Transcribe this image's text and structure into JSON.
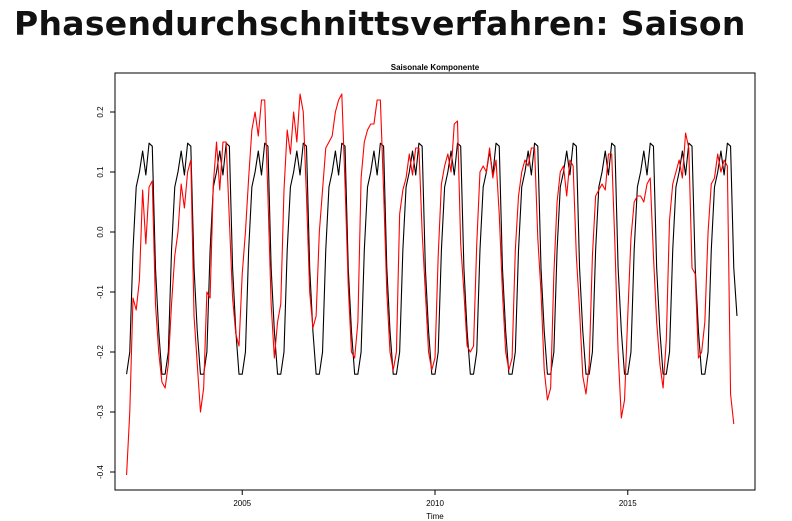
{
  "slide": {
    "title": "Phasendurchschnittsverfahren: Saison"
  },
  "chart_data": {
    "type": "line",
    "title": "Saisonale Komponente",
    "xlabel": "Time",
    "ylabel": "",
    "xlim": [
      2001.7,
      2018.3
    ],
    "ylim": [
      -0.43,
      0.265
    ],
    "xticks": [
      2005,
      2010,
      2015
    ],
    "yticks": [
      -0.4,
      -0.3,
      -0.2,
      -0.1,
      0.0,
      0.1,
      0.2
    ],
    "ytick_labels": [
      "-0.4",
      "-0.3",
      "-0.2",
      "-0.1",
      "0.0",
      "0.1",
      "0.2"
    ],
    "grid": false,
    "legend": "none",
    "x_start": 2002.0,
    "x_step": 0.08333,
    "series": [
      {
        "color": "#000000",
        "values": [
          -0.237,
          -0.2,
          -0.03,
          0.075,
          0.1,
          0.135,
          0.095,
          0.148,
          0.143,
          -0.06,
          -0.165,
          -0.237,
          -0.237,
          -0.2,
          -0.03,
          0.075,
          0.1,
          0.135,
          0.095,
          0.148,
          0.143,
          -0.06,
          -0.165,
          -0.237,
          -0.237,
          -0.2,
          -0.03,
          0.075,
          0.1,
          0.135,
          0.095,
          0.148,
          0.143,
          -0.06,
          -0.165,
          -0.237,
          -0.237,
          -0.2,
          -0.03,
          0.075,
          0.1,
          0.135,
          0.095,
          0.148,
          0.143,
          -0.06,
          -0.165,
          -0.237,
          -0.237,
          -0.2,
          -0.03,
          0.075,
          0.1,
          0.135,
          0.095,
          0.148,
          0.143,
          -0.06,
          -0.165,
          -0.237,
          -0.237,
          -0.2,
          -0.03,
          0.075,
          0.1,
          0.135,
          0.095,
          0.148,
          0.143,
          -0.06,
          -0.165,
          -0.237,
          -0.237,
          -0.2,
          -0.03,
          0.075,
          0.1,
          0.135,
          0.095,
          0.148,
          0.143,
          -0.06,
          -0.165,
          -0.237,
          -0.237,
          -0.2,
          -0.03,
          0.075,
          0.1,
          0.135,
          0.095,
          0.148,
          0.143,
          -0.06,
          -0.165,
          -0.237,
          -0.237,
          -0.2,
          -0.03,
          0.075,
          0.1,
          0.135,
          0.095,
          0.148,
          0.143,
          -0.06,
          -0.165,
          -0.237,
          -0.237,
          -0.2,
          -0.03,
          0.075,
          0.1,
          0.135,
          0.095,
          0.148,
          0.143,
          -0.06,
          -0.165,
          -0.237,
          -0.237,
          -0.2,
          -0.03,
          0.075,
          0.1,
          0.135,
          0.095,
          0.148,
          0.143,
          -0.06,
          -0.165,
          -0.237,
          -0.237,
          -0.2,
          -0.03,
          0.075,
          0.1,
          0.135,
          0.095,
          0.148,
          0.143,
          -0.06,
          -0.165,
          -0.237,
          -0.237,
          -0.2,
          -0.03,
          0.075,
          0.1,
          0.135,
          0.095,
          0.148,
          0.143,
          -0.06,
          -0.165,
          -0.237,
          -0.237,
          -0.2,
          -0.03,
          0.075,
          0.1,
          0.135,
          0.095,
          0.148,
          0.143,
          -0.06,
          -0.165,
          -0.237,
          -0.237,
          -0.2,
          -0.03,
          0.075,
          0.1,
          0.135,
          0.095,
          0.148,
          0.143,
          -0.06,
          -0.165,
          -0.237,
          -0.237,
          -0.2,
          -0.03,
          0.075,
          0.1,
          0.135,
          0.095,
          0.148,
          0.143,
          -0.06,
          -0.14
        ]
      },
      {
        "color": "#ff0000",
        "values": [
          -0.405,
          -0.3,
          -0.11,
          -0.13,
          -0.08,
          0.07,
          -0.02,
          0.075,
          0.085,
          -0.12,
          -0.2,
          -0.25,
          -0.26,
          -0.22,
          -0.12,
          -0.04,
          0.0,
          0.08,
          0.04,
          0.1,
          0.12,
          -0.14,
          -0.22,
          -0.3,
          -0.26,
          -0.1,
          -0.11,
          0.08,
          0.15,
          0.07,
          0.15,
          0.15,
          0.02,
          -0.11,
          -0.17,
          -0.19,
          -0.07,
          0.0,
          0.09,
          0.17,
          0.2,
          0.16,
          0.22,
          0.22,
          0.06,
          -0.12,
          -0.21,
          -0.15,
          -0.12,
          0.07,
          0.17,
          0.13,
          0.2,
          0.15,
          0.23,
          0.2,
          0.06,
          -0.1,
          -0.16,
          -0.14,
          0.0,
          0.07,
          0.14,
          0.15,
          0.16,
          0.2,
          0.22,
          0.23,
          0.08,
          -0.09,
          -0.2,
          -0.21,
          -0.15,
          0.09,
          0.15,
          0.17,
          0.18,
          0.18,
          0.22,
          0.22,
          0.07,
          -0.1,
          -0.2,
          -0.23,
          -0.2,
          0.03,
          0.07,
          0.09,
          0.13,
          0.095,
          0.14,
          0.14,
          0.0,
          -0.1,
          -0.2,
          -0.23,
          -0.21,
          -0.04,
          0.08,
          0.11,
          0.13,
          0.1,
          0.18,
          0.185,
          -0.02,
          -0.1,
          -0.19,
          -0.2,
          -0.19,
          -0.02,
          0.1,
          0.11,
          0.1,
          0.14,
          0.09,
          0.12,
          0.03,
          -0.1,
          -0.2,
          -0.23,
          -0.21,
          -0.03,
          0.06,
          0.1,
          0.12,
          0.11,
          0.14,
          0.14,
          -0.01,
          -0.1,
          -0.23,
          -0.28,
          -0.26,
          -0.07,
          0.05,
          0.1,
          0.11,
          0.06,
          0.12,
          0.11,
          -0.04,
          -0.13,
          -0.24,
          -0.27,
          -0.22,
          -0.04,
          0.06,
          0.07,
          0.08,
          0.07,
          0.13,
          0.13,
          -0.02,
          -0.2,
          -0.31,
          -0.28,
          -0.14,
          -0.01,
          0.05,
          0.06,
          0.06,
          0.05,
          0.08,
          0.09,
          -0.04,
          -0.15,
          -0.22,
          -0.26,
          -0.18,
          0.02,
          0.08,
          0.1,
          0.12,
          0.09,
          0.165,
          0.14,
          -0.06,
          -0.07,
          -0.21,
          -0.2,
          -0.15,
          0.0,
          0.08,
          0.09,
          0.13,
          0.1,
          0.12,
          0.11,
          -0.27,
          -0.32
        ]
      }
    ]
  }
}
